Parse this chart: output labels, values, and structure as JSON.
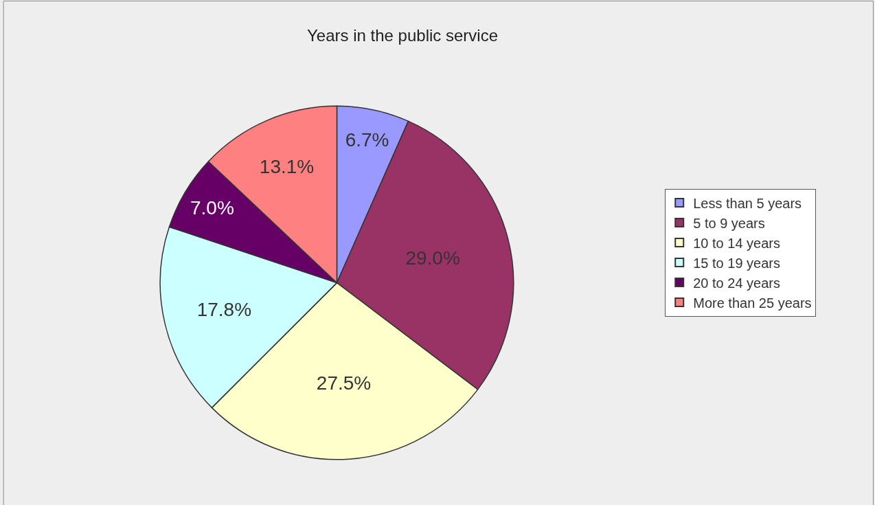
{
  "chart_data": {
    "type": "pie",
    "title": "Years in the public service",
    "categories": [
      "Less than 5 years",
      "5 to 9 years",
      "10 to 14 years",
      "15 to 19 years",
      "20 to 24 years",
      "More than 25 years"
    ],
    "values": [
      6.7,
      29.0,
      27.5,
      17.8,
      7.0,
      13.1
    ],
    "value_labels": [
      "6.7%",
      "29.0%",
      "27.5%",
      "17.8%",
      "7.0%",
      "13.1%"
    ],
    "colors": [
      "#9999ff",
      "#993366",
      "#ffffcc",
      "#ccffff",
      "#660066",
      "#ff8080"
    ],
    "legend": "right"
  }
}
